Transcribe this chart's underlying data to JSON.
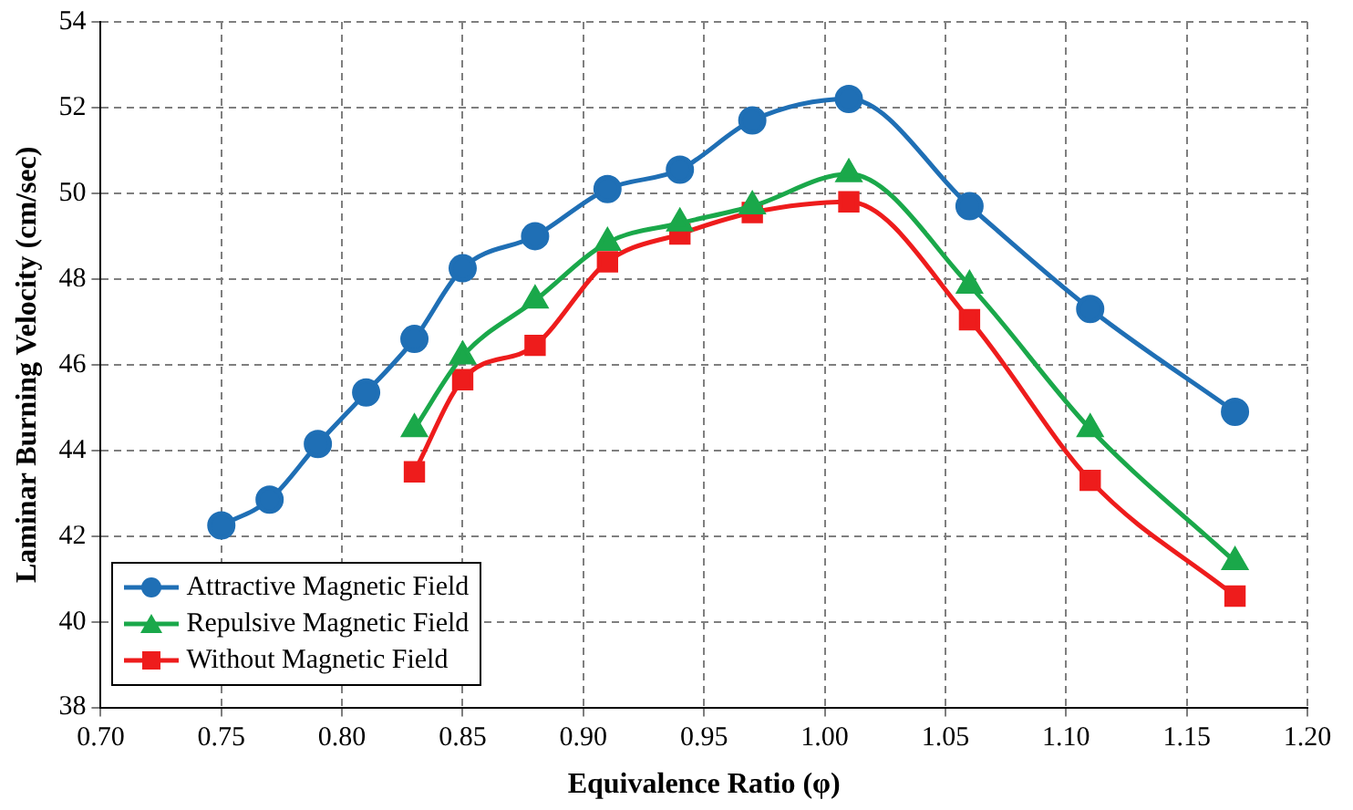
{
  "chart_data": {
    "type": "line",
    "xlabel": "Equivalence Ratio (φ)",
    "ylabel": "Laminar Burning Velocity (cm/sec)",
    "xlim": [
      0.7,
      1.2
    ],
    "xticks": [
      {
        "value": 0.7,
        "label": "0.70"
      },
      {
        "value": 0.75,
        "label": "0.75"
      },
      {
        "value": 0.8,
        "label": "0.80"
      },
      {
        "value": 0.85,
        "label": "0.85"
      },
      {
        "value": 0.9,
        "label": "0.90"
      },
      {
        "value": 0.95,
        "label": "0.95"
      },
      {
        "value": 1.0,
        "label": "1.00"
      },
      {
        "value": 1.05,
        "label": "1.05"
      },
      {
        "value": 1.1,
        "label": "1.10"
      },
      {
        "value": 1.15,
        "label": "1.15"
      },
      {
        "value": 1.2,
        "label": "1.20"
      }
    ],
    "ylim": [
      38,
      54
    ],
    "yticks": [
      38,
      40,
      42,
      44,
      46,
      48,
      50,
      52,
      54
    ],
    "grid": true,
    "legend": "bottom left",
    "series": [
      {
        "name": "Attractive Magnetic Field",
        "color": "#1f6fb5",
        "marker": "circle",
        "x": [
          0.75,
          0.77,
          0.79,
          0.81,
          0.83,
          0.85,
          0.88,
          0.91,
          0.94,
          0.97,
          1.01,
          1.06,
          1.11,
          1.17
        ],
        "values": [
          42.25,
          42.85,
          44.15,
          45.35,
          46.6,
          48.25,
          49.0,
          50.1,
          50.55,
          51.7,
          52.2,
          49.7,
          47.3,
          44.9
        ]
      },
      {
        "name": "Repulsive Magnetic Field",
        "color": "#1aa84a",
        "marker": "triangle",
        "x": [
          0.83,
          0.85,
          0.88,
          0.91,
          0.94,
          0.97,
          1.01,
          1.06,
          1.11,
          1.17
        ],
        "values": [
          44.5,
          46.2,
          47.5,
          48.85,
          49.3,
          49.7,
          50.45,
          47.85,
          44.5,
          41.4
        ]
      },
      {
        "name": "Without Magnetic Field",
        "color": "#ee1c1c",
        "marker": "square",
        "x": [
          0.83,
          0.85,
          0.88,
          0.91,
          0.94,
          0.97,
          1.01,
          1.06,
          1.11,
          1.17
        ],
        "values": [
          43.5,
          45.65,
          46.45,
          48.4,
          49.05,
          49.55,
          49.8,
          47.05,
          43.3,
          40.6
        ]
      }
    ]
  }
}
